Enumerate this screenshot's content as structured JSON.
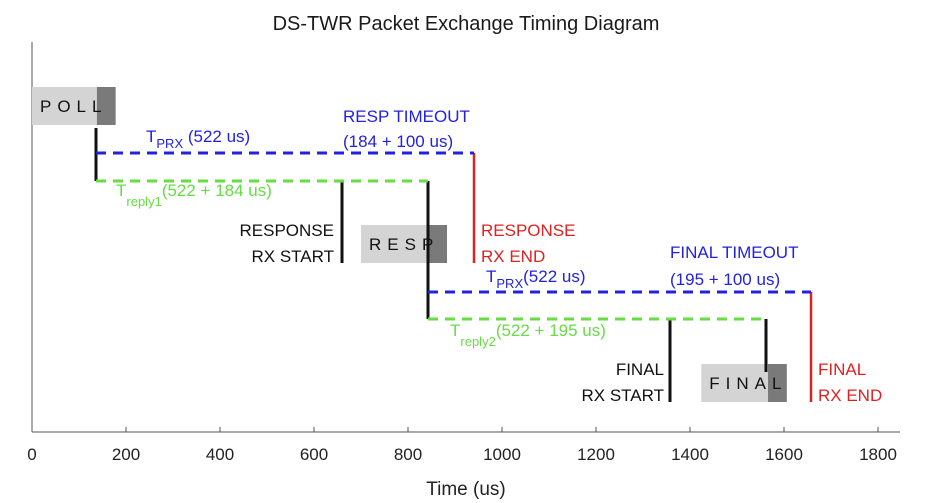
{
  "title": "DS-TWR Packet Exchange Timing Diagram",
  "xlabel": "Time (us)",
  "x_ticks": [
    "0",
    "200",
    "400",
    "600",
    "800",
    "1000",
    "1200",
    "1400",
    "1600",
    "1800"
  ],
  "x_tick_values": [
    0,
    200,
    400,
    600,
    800,
    1000,
    1200,
    1400,
    1600,
    1800
  ],
  "xlim": [
    0,
    1850
  ],
  "colors": {
    "blue": "#2222dd",
    "green": "#66dd44",
    "red": "#dd2222",
    "black": "#111111",
    "packet_light": "#d4d4d4",
    "packet_dark": "#7a7a7a"
  },
  "packets": [
    {
      "label": "POLL",
      "start": 0,
      "dark_start": 138,
      "end": 178
    },
    {
      "label": "RESP",
      "start": 700,
      "dark_start": 843,
      "end": 883
    },
    {
      "label": "FINAL",
      "start": 1424,
      "dark_start": 1566,
      "end": 1606
    }
  ],
  "annotations": {
    "t_prx_1": {
      "main": "T",
      "sub": "PRX",
      "rest": " (522 us)"
    },
    "resp_timeout_title": "RESP TIMEOUT",
    "resp_timeout_value": "(184 + 100 us)",
    "t_reply1": {
      "main": "T",
      "sub": "reply1",
      "rest": "(522 + 184 us)"
    },
    "response_rx_start_1": "RESPONSE",
    "response_rx_start_2": "RX START",
    "response_rx_end_1": "RESPONSE",
    "response_rx_end_2": "RX END",
    "t_prx_2": {
      "main": "T",
      "sub": "PRX",
      "rest": "(522 us)"
    },
    "final_timeout_title": "FINAL TIMEOUT",
    "final_timeout_value": "(195 + 100 us)",
    "t_reply2": {
      "main": "T",
      "sub": "reply2",
      "rest": "(522 + 195 us)"
    },
    "final_rx_start_1": "FINAL",
    "final_rx_start_2": "RX START",
    "final_rx_end_1": "FINAL",
    "final_rx_end_2": "RX END"
  }
}
